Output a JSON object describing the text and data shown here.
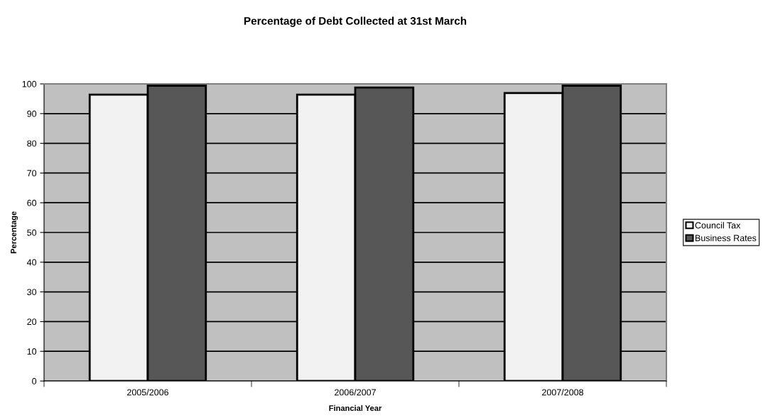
{
  "chart_data": {
    "type": "bar",
    "title": "Percentage of Debt Collected at 31st March",
    "xlabel": "Financial Year",
    "ylabel": "Percentage",
    "categories": [
      "2005/2006",
      "2006/2007",
      "2007/2008"
    ],
    "series": [
      {
        "name": "Council Tax",
        "color": "#f2f2f2",
        "values": [
          96.4,
          96.4,
          96.9
        ]
      },
      {
        "name": "Business Rates",
        "color": "#575757",
        "values": [
          99.4,
          98.8,
          99.4
        ]
      }
    ],
    "ylim": [
      0,
      100
    ],
    "yticks": [
      0,
      10,
      20,
      30,
      40,
      50,
      60,
      70,
      80,
      90,
      100
    ],
    "grid": "y",
    "legend": "right"
  }
}
